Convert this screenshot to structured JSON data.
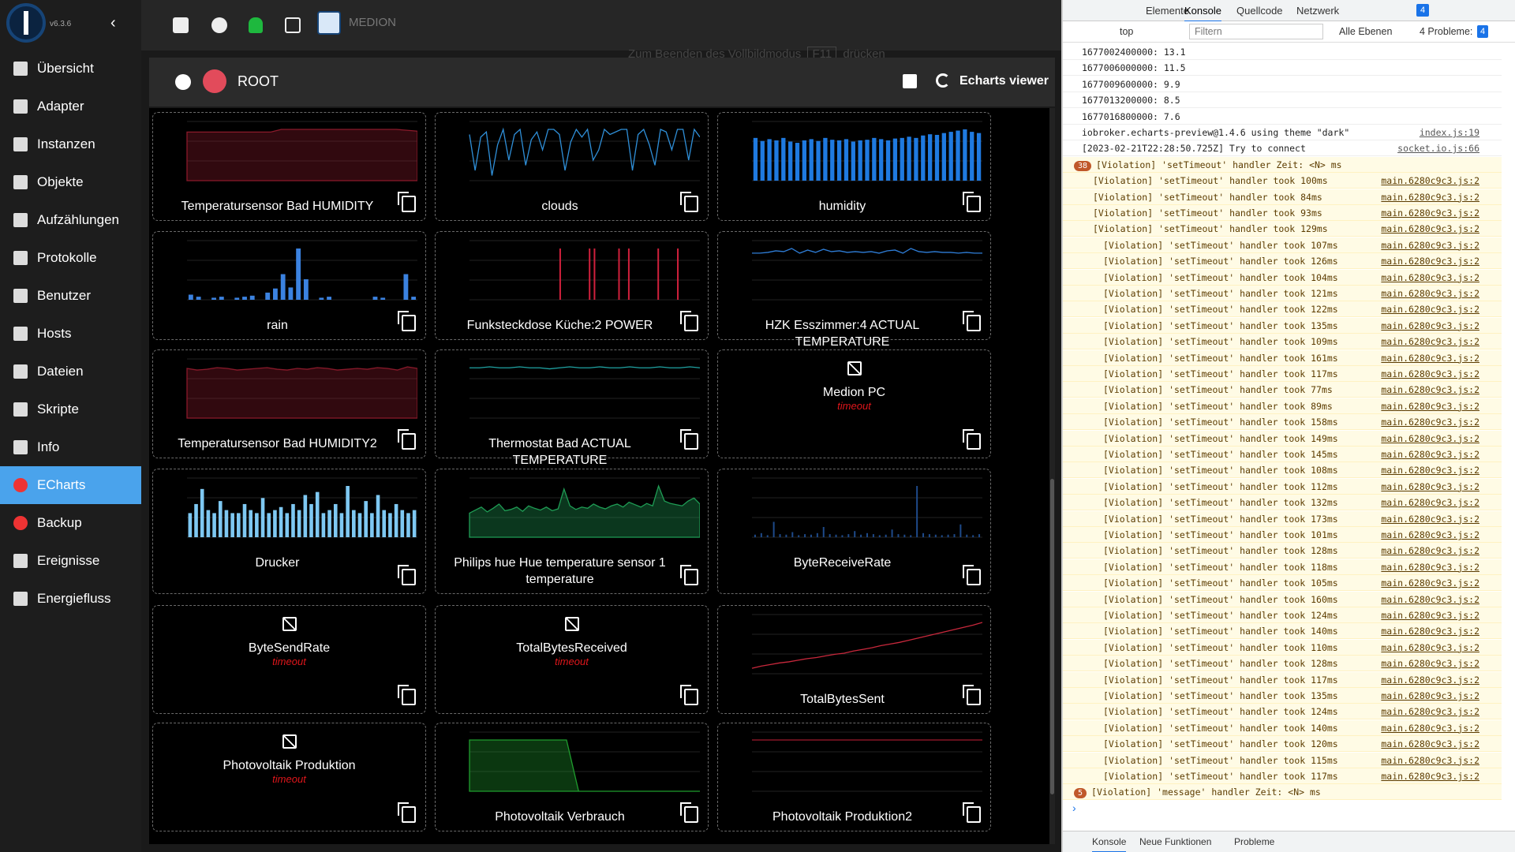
{
  "sidebar": {
    "version": "v6.3.6",
    "menu": [
      "Übersicht",
      "Adapter",
      "Instanzen",
      "Objekte",
      "Aufzählungen",
      "Protokolle",
      "Benutzer",
      "Hosts",
      "Dateien",
      "Skripte",
      "Info",
      "ECharts",
      "Backup",
      "Ereignisse",
      "Energiefluss"
    ]
  },
  "toolbar": {
    "host": "MEDION",
    "fullscreen_hint": [
      "Zum Beenden des Vollbildmodus",
      "F11",
      "drücken"
    ]
  },
  "header": {
    "title": "ROOT",
    "viewer": "Echarts viewer"
  },
  "tiles": [
    {
      "title": "Temperatursensor Bad HUMIDITY",
      "preview": {
        "type": "area",
        "color": "#8b1a2b",
        "values": [
          55,
          55,
          55,
          55,
          55,
          55,
          55,
          55,
          55,
          58,
          58,
          58,
          58,
          58,
          58,
          58,
          58,
          58,
          58,
          58,
          58,
          57,
          56
        ]
      }
    },
    {
      "title": "clouds",
      "preview": {
        "type": "line",
        "color": "#2f8fd8",
        "values": [
          90,
          20,
          85,
          95,
          10,
          70,
          100,
          40,
          90,
          100,
          30,
          80,
          95,
          60,
          100,
          100,
          90,
          20,
          75,
          100,
          85,
          100,
          40,
          60,
          100,
          90,
          95,
          100,
          100,
          20,
          90,
          100,
          70,
          30,
          100,
          95,
          60,
          100,
          100,
          40,
          100,
          85
        ]
      }
    },
    {
      "title": "humidity",
      "preview": {
        "type": "bar",
        "color": "#1f7ae0",
        "values": [
          70,
          65,
          68,
          66,
          70,
          64,
          62,
          66,
          68,
          65,
          70,
          67,
          66,
          68,
          64,
          66,
          67,
          70,
          68,
          66,
          69,
          70,
          72,
          70,
          74,
          76,
          75,
          78,
          80,
          82,
          84,
          80,
          78
        ]
      }
    },
    {
      "title": "rain",
      "preview": {
        "type": "bar",
        "color": "#3b82e0",
        "values": [
          10,
          6,
          0,
          4,
          6,
          0,
          4,
          6,
          8,
          0,
          14,
          22,
          50,
          24,
          100,
          40,
          0,
          4,
          6,
          0,
          0,
          0,
          0,
          0,
          6,
          4,
          0,
          0,
          50,
          6
        ]
      }
    },
    {
      "title": "Funksteckdose Küche:2 POWER",
      "preview": {
        "type": "spike",
        "color": "#d0203c",
        "values": [
          0,
          0,
          0,
          0,
          0,
          0,
          0,
          0,
          0,
          0,
          0,
          0,
          0,
          0,
          0,
          0,
          0,
          0,
          100,
          0,
          0,
          0,
          0,
          0,
          100,
          100,
          0,
          0,
          0,
          0,
          100,
          0,
          100,
          0,
          0,
          0,
          0,
          0,
          100,
          0,
          0,
          0,
          100,
          0,
          0,
          0,
          0
        ]
      }
    },
    {
      "title": "HZK Esszimmer:4 ACTUAL TEMPERATURE",
      "preview": {
        "type": "line",
        "color": "#2f7ed8",
        "values": [
          60,
          60,
          61,
          63,
          62,
          66,
          60,
          64,
          61,
          65,
          62,
          63,
          61,
          62,
          61,
          62,
          60,
          63,
          64,
          60,
          66,
          62,
          61,
          62,
          61,
          61,
          60,
          61,
          60,
          60
        ]
      }
    },
    {
      "title": "Temperatursensor Bad HUMIDITY2",
      "preview": {
        "type": "area",
        "color": "#8b1a2b",
        "values": [
          62,
          60,
          61,
          63,
          62,
          60,
          61,
          62,
          63,
          61,
          60,
          62,
          61,
          63,
          62,
          60,
          61,
          62,
          61,
          63,
          62,
          60,
          64,
          62
        ]
      }
    },
    {
      "title": "Thermostat Bad ACTUAL TEMPERATURE",
      "preview": {
        "type": "line",
        "color": "#1fa3a3",
        "values": [
          50,
          50,
          51,
          50,
          50,
          51,
          50,
          50,
          49,
          50,
          51,
          50,
          50,
          51,
          50,
          50,
          51,
          50,
          50,
          51,
          50,
          50,
          51,
          50
        ]
      }
    },
    {
      "title": "Medion PC",
      "status": "timeout"
    },
    {
      "title": "Drucker",
      "preview": {
        "type": "bar",
        "color": "#7ec8f2",
        "values": [
          40,
          55,
          80,
          45,
          40,
          60,
          45,
          40,
          40,
          55,
          45,
          40,
          65,
          40,
          45,
          50,
          40,
          55,
          45,
          70,
          55,
          75,
          40,
          45,
          55,
          40,
          85,
          45,
          40,
          60,
          40,
          70,
          45,
          40,
          55,
          45,
          40,
          45
        ]
      }
    },
    {
      "title": "Philips hue Hue temperature sensor 1 temperature",
      "preview": {
        "type": "area",
        "color": "#1f9d55",
        "values": [
          40,
          45,
          50,
          42,
          48,
          55,
          44,
          46,
          50,
          43,
          52,
          48,
          45,
          50,
          44,
          47,
          80,
          52,
          46,
          50,
          48,
          55,
          50,
          47,
          52,
          55,
          50,
          58,
          54,
          50,
          56,
          52,
          85,
          60,
          56,
          54,
          52,
          60,
          65,
          55
        ]
      }
    },
    {
      "title": "ByteReceiveRate",
      "preview": {
        "type": "spike",
        "color": "#1e4a8a",
        "values": [
          5,
          8,
          4,
          30,
          6,
          5,
          10,
          4,
          6,
          5,
          8,
          20,
          6,
          5,
          4,
          6,
          12,
          5,
          8,
          6,
          4,
          5,
          15,
          6,
          5,
          4,
          100,
          8,
          6,
          5,
          4,
          5,
          6,
          25,
          5,
          4,
          6
        ]
      }
    },
    {
      "title": "ByteSendRate",
      "status": "timeout"
    },
    {
      "title": "TotalBytesReceived",
      "status": "timeout"
    },
    {
      "title": "TotalBytesSent",
      "preview": {
        "type": "line",
        "color": "#c8283c",
        "values": [
          10,
          14,
          17,
          20,
          22,
          25,
          28,
          30,
          33,
          36,
          38,
          42,
          45,
          48,
          52,
          55,
          58,
          62,
          66,
          70,
          74,
          78,
          82,
          86,
          90,
          95
        ]
      }
    },
    {
      "title": "Photovoltaik Produktion",
      "status": "timeout"
    },
    {
      "title": "Photovoltaik Verbrauch",
      "preview": {
        "type": "area",
        "color": "#1f9d2e",
        "values": [
          100,
          100,
          100,
          100,
          100,
          100,
          100,
          100,
          100,
          0,
          0,
          0,
          0,
          0,
          0,
          0,
          0,
          0,
          0,
          0
        ]
      }
    },
    {
      "title": "Photovoltaik Produktion2",
      "preview": {
        "type": "line",
        "color": "#a0192c",
        "values": [
          100,
          100,
          100,
          100,
          100,
          100,
          100,
          100,
          100,
          100,
          100,
          100
        ]
      }
    }
  ],
  "devtools": {
    "tabs": [
      "Elemente",
      "Konsole",
      "Quellcode",
      "Netzwerk"
    ],
    "issues_badge": "4",
    "context": "top",
    "filter": "Filtern",
    "levels": "Alle Ebenen",
    "problems": "4 Probleme:",
    "problems_count": "4",
    "bottom_tabs": [
      "Konsole",
      "Neue Funktionen",
      "Probleme"
    ],
    "console": {
      "plain": [
        {
          "text": "1677002400000: 13.1"
        },
        {
          "text": "1677006000000: 11.5"
        },
        {
          "text": "1677009600000: 9.9"
        },
        {
          "text": "1677013200000: 8.5"
        },
        {
          "text": "1677016800000: 7.6"
        },
        {
          "text": "iobroker.echarts-preview@1.4.6 using theme \"dark\"",
          "source": "index.js:19"
        },
        {
          "text": "[2023-02-21T22:28:50.725Z] Try to connect",
          "source": "socket.io.js:66"
        }
      ],
      "group": {
        "count": "38",
        "text": "[Violation] 'setTimeout' handler Zeit: <N> ms",
        "items": [
          {
            "text": "[Violation] 'setTimeout' handler took 100ms",
            "source": "main.6280c9c3.js:2"
          },
          {
            "text": "[Violation] 'setTimeout' handler took 84ms",
            "source": "main.6280c9c3.js:2"
          },
          {
            "text": "[Violation] 'setTimeout' handler took 93ms",
            "source": "main.6280c9c3.js:2"
          },
          {
            "text": "[Violation] 'setTimeout' handler took 129ms",
            "source": "main.6280c9c3.js:2"
          }
        ],
        "subitems": [
          {
            "text": "[Violation] 'setTimeout' handler took 107ms",
            "source": "main.6280c9c3.js:2"
          },
          {
            "text": "[Violation] 'setTimeout' handler took 126ms",
            "source": "main.6280c9c3.js:2"
          },
          {
            "text": "[Violation] 'setTimeout' handler took 104ms",
            "source": "main.6280c9c3.js:2"
          },
          {
            "text": "[Violation] 'setTimeout' handler took 121ms",
            "source": "main.6280c9c3.js:2"
          },
          {
            "text": "[Violation] 'setTimeout' handler took 122ms",
            "source": "main.6280c9c3.js:2"
          },
          {
            "text": "[Violation] 'setTimeout' handler took 135ms",
            "source": "main.6280c9c3.js:2"
          },
          {
            "text": "[Violation] 'setTimeout' handler took 109ms",
            "source": "main.6280c9c3.js:2"
          },
          {
            "text": "[Violation] 'setTimeout' handler took 161ms",
            "source": "main.6280c9c3.js:2"
          },
          {
            "text": "[Violation] 'setTimeout' handler took 117ms",
            "source": "main.6280c9c3.js:2"
          },
          {
            "text": "[Violation] 'setTimeout' handler took 77ms",
            "source": "main.6280c9c3.js:2"
          },
          {
            "text": "[Violation] 'setTimeout' handler took 89ms",
            "source": "main.6280c9c3.js:2"
          },
          {
            "text": "[Violation] 'setTimeout' handler took 158ms",
            "source": "main.6280c9c3.js:2"
          },
          {
            "text": "[Violation] 'setTimeout' handler took 149ms",
            "source": "main.6280c9c3.js:2"
          },
          {
            "text": "[Violation] 'setTimeout' handler took 145ms",
            "source": "main.6280c9c3.js:2"
          },
          {
            "text": "[Violation] 'setTimeout' handler took 108ms",
            "source": "main.6280c9c3.js:2"
          },
          {
            "text": "[Violation] 'setTimeout' handler took 112ms",
            "source": "main.6280c9c3.js:2"
          },
          {
            "text": "[Violation] 'setTimeout' handler took 132ms",
            "source": "main.6280c9c3.js:2"
          },
          {
            "text": "[Violation] 'setTimeout' handler took 173ms",
            "source": "main.6280c9c3.js:2"
          },
          {
            "text": "[Violation] 'setTimeout' handler took 101ms",
            "source": "main.6280c9c3.js:2"
          },
          {
            "text": "[Violation] 'setTimeout' handler took 128ms",
            "source": "main.6280c9c3.js:2"
          },
          {
            "text": "[Violation] 'setTimeout' handler took 118ms",
            "source": "main.6280c9c3.js:2"
          },
          {
            "text": "[Violation] 'setTimeout' handler took 105ms",
            "source": "main.6280c9c3.js:2"
          },
          {
            "text": "[Violation] 'setTimeout' handler took 160ms",
            "source": "main.6280c9c3.js:2"
          },
          {
            "text": "[Violation] 'setTimeout' handler took 124ms",
            "source": "main.6280c9c3.js:2"
          },
          {
            "text": "[Violation] 'setTimeout' handler took 140ms",
            "source": "main.6280c9c3.js:2"
          },
          {
            "text": "[Violation] 'setTimeout' handler took 110ms",
            "source": "main.6280c9c3.js:2"
          },
          {
            "text": "[Violation] 'setTimeout' handler took 128ms",
            "source": "main.6280c9c3.js:2"
          },
          {
            "text": "[Violation] 'setTimeout' handler took 117ms",
            "source": "main.6280c9c3.js:2"
          },
          {
            "text": "[Violation] 'setTimeout' handler took 135ms",
            "source": "main.6280c9c3.js:2"
          },
          {
            "text": "[Violation] 'setTimeout' handler took 124ms",
            "source": "main.6280c9c3.js:2"
          },
          {
            "text": "[Violation] 'setTimeout' handler took 140ms",
            "source": "main.6280c9c3.js:2"
          },
          {
            "text": "[Violation] 'setTimeout' handler took 120ms",
            "source": "main.6280c9c3.js:2"
          },
          {
            "text": "[Violation] 'setTimeout' handler took 115ms",
            "source": "main.6280c9c3.js:2"
          },
          {
            "text": "[Violation] 'setTimeout' handler took 117ms",
            "source": "main.6280c9c3.js:2"
          }
        ]
      },
      "group2": {
        "count": "5",
        "text": "[Violation] 'message' handler Zeit: <N> ms"
      }
    }
  }
}
